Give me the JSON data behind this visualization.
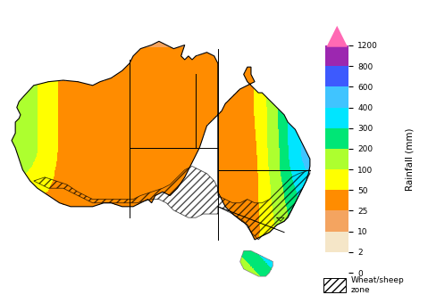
{
  "colorbar_label": "Rainfall (mm)",
  "colorbar_ticks": [
    0,
    2,
    10,
    25,
    50,
    100,
    200,
    300,
    400,
    600,
    800,
    1200
  ],
  "band_colors": [
    "#ffffff",
    "#f5e6c8",
    "#f4a460",
    "#ff8c00",
    "#ffff00",
    "#adff2f",
    "#00e676",
    "#00e5ff",
    "#40c4ff",
    "#3d5afe",
    "#9c27b0"
  ],
  "arrow_color": "#ff69b4",
  "background_color": "#ffffff",
  "legend_hatch_label": "Wheat/sheep\nzone",
  "fig_width": 4.79,
  "fig_height": 3.4,
  "dpi": 100
}
